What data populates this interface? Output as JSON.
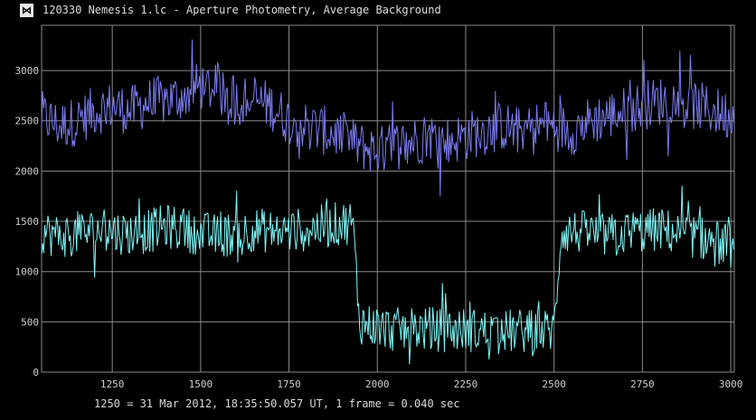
{
  "window": {
    "title": "120330 Nemesis 1.lc - Aperture Photometry, Average Background",
    "icon": "lightcurve-app-icon"
  },
  "footnote": "1250 = 31 Mar 2012, 18:35:50.057 UT, 1 frame = 0.040 sec",
  "colors": {
    "background": "#000000",
    "grid": "#8a8a8a",
    "series1": "#7b7bf0",
    "series2": "#7ff5f5",
    "series1_tail": "#9a9aa0"
  },
  "chart_data": {
    "type": "line",
    "title": "",
    "xlabel": "",
    "ylabel": "",
    "xlim": [
      1050,
      3010
    ],
    "ylim": [
      0,
      3450
    ],
    "grid": true,
    "x_ticks": [
      1250,
      1500,
      1750,
      2000,
      2250,
      2500,
      2750,
      3000
    ],
    "y_ticks": [
      0,
      500,
      1000,
      1500,
      2000,
      2500,
      3000
    ],
    "x_tick_labels": [
      "1250",
      "1500",
      "1750",
      "2000",
      "2250",
      "2500",
      "2750",
      "3000"
    ],
    "y_tick_labels": [
      "0",
      "500",
      "1000",
      "1500",
      "2000",
      "2500",
      "3000"
    ],
    "series": [
      {
        "color": "#7b7bf0",
        "x": [
          1050,
          1100,
          1150,
          1200,
          1250,
          1300,
          1350,
          1400,
          1450,
          1500,
          1550,
          1600,
          1650,
          1700,
          1750,
          1800,
          1850,
          1900,
          1950,
          2000,
          2050,
          2100,
          2150,
          2200,
          2250,
          2300,
          2350,
          2400,
          2450,
          2500,
          2550,
          2600,
          2650,
          2700,
          2750,
          2800,
          2850,
          2900,
          2950,
          3000
        ],
        "values": [
          2550,
          2450,
          2500,
          2600,
          2650,
          2600,
          2680,
          2700,
          2750,
          2850,
          2800,
          2700,
          2700,
          2650,
          2500,
          2450,
          2400,
          2350,
          2250,
          2200,
          2250,
          2300,
          2350,
          2300,
          2350,
          2400,
          2450,
          2400,
          2450,
          2450,
          2400,
          2500,
          2550,
          2600,
          2650,
          2700,
          2700,
          2650,
          2600,
          2550
        ],
        "noise": 280
      },
      {
        "color": "#7ff5f5",
        "x": [
          1050,
          1100,
          1150,
          1200,
          1250,
          1300,
          1350,
          1400,
          1450,
          1500,
          1550,
          1600,
          1650,
          1700,
          1750,
          1800,
          1850,
          1900,
          1930,
          1950,
          2000,
          2050,
          2100,
          2150,
          2200,
          2250,
          2300,
          2350,
          2400,
          2450,
          2500,
          2520,
          2550,
          2600,
          2650,
          2700,
          2750,
          2800,
          2850,
          2900,
          2950,
          3000
        ],
        "values": [
          1400,
          1350,
          1380,
          1400,
          1400,
          1380,
          1400,
          1450,
          1420,
          1380,
          1350,
          1380,
          1420,
          1400,
          1400,
          1420,
          1450,
          1480,
          1500,
          500,
          450,
          420,
          440,
          430,
          420,
          420,
          410,
          400,
          410,
          400,
          420,
          1400,
          1400,
          1380,
          1350,
          1380,
          1400,
          1420,
          1380,
          1350,
          1300,
          1250
        ],
        "noise": 250
      }
    ]
  }
}
